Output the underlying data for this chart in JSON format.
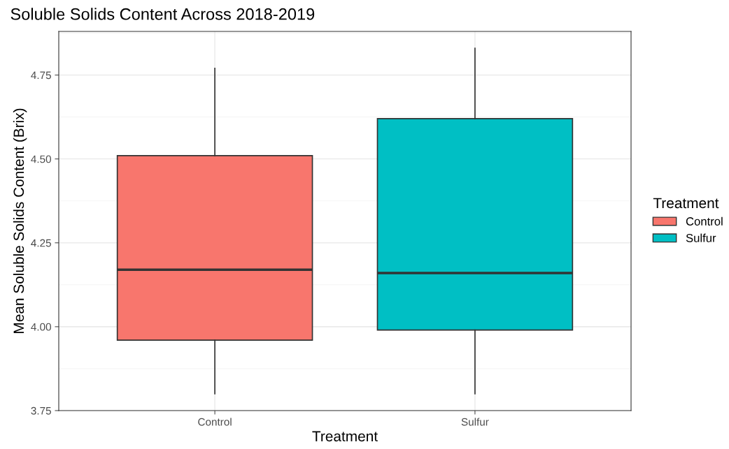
{
  "chart_data": {
    "type": "box",
    "title": "Soluble Solids Content Across 2018-2019",
    "xlabel": "Treatment",
    "ylabel": "Mean Soluble Solids Content (Brix)",
    "legend_title": "Treatment",
    "categories": [
      "Control",
      "Sulfur"
    ],
    "series": [
      {
        "name": "Control",
        "color": "#f8766d",
        "boxes": [
          {
            "low": 3.8,
            "q1": 3.96,
            "median": 4.17,
            "q3": 4.51,
            "high": 4.77
          },
          null
        ]
      },
      {
        "name": "Sulfur",
        "color": "#00bfc4",
        "boxes": [
          null,
          {
            "low": 3.8,
            "q1": 3.99,
            "median": 4.16,
            "q3": 4.62,
            "high": 4.83
          }
        ]
      }
    ],
    "ylim": [
      3.75,
      4.88
    ],
    "yticks": [
      3.75,
      {
        "value": 4,
        "label": "4.00"
      },
      4.25,
      {
        "value": 4.5,
        "label": "4.50"
      },
      4.75
    ],
    "grid": true,
    "legend": "right"
  }
}
